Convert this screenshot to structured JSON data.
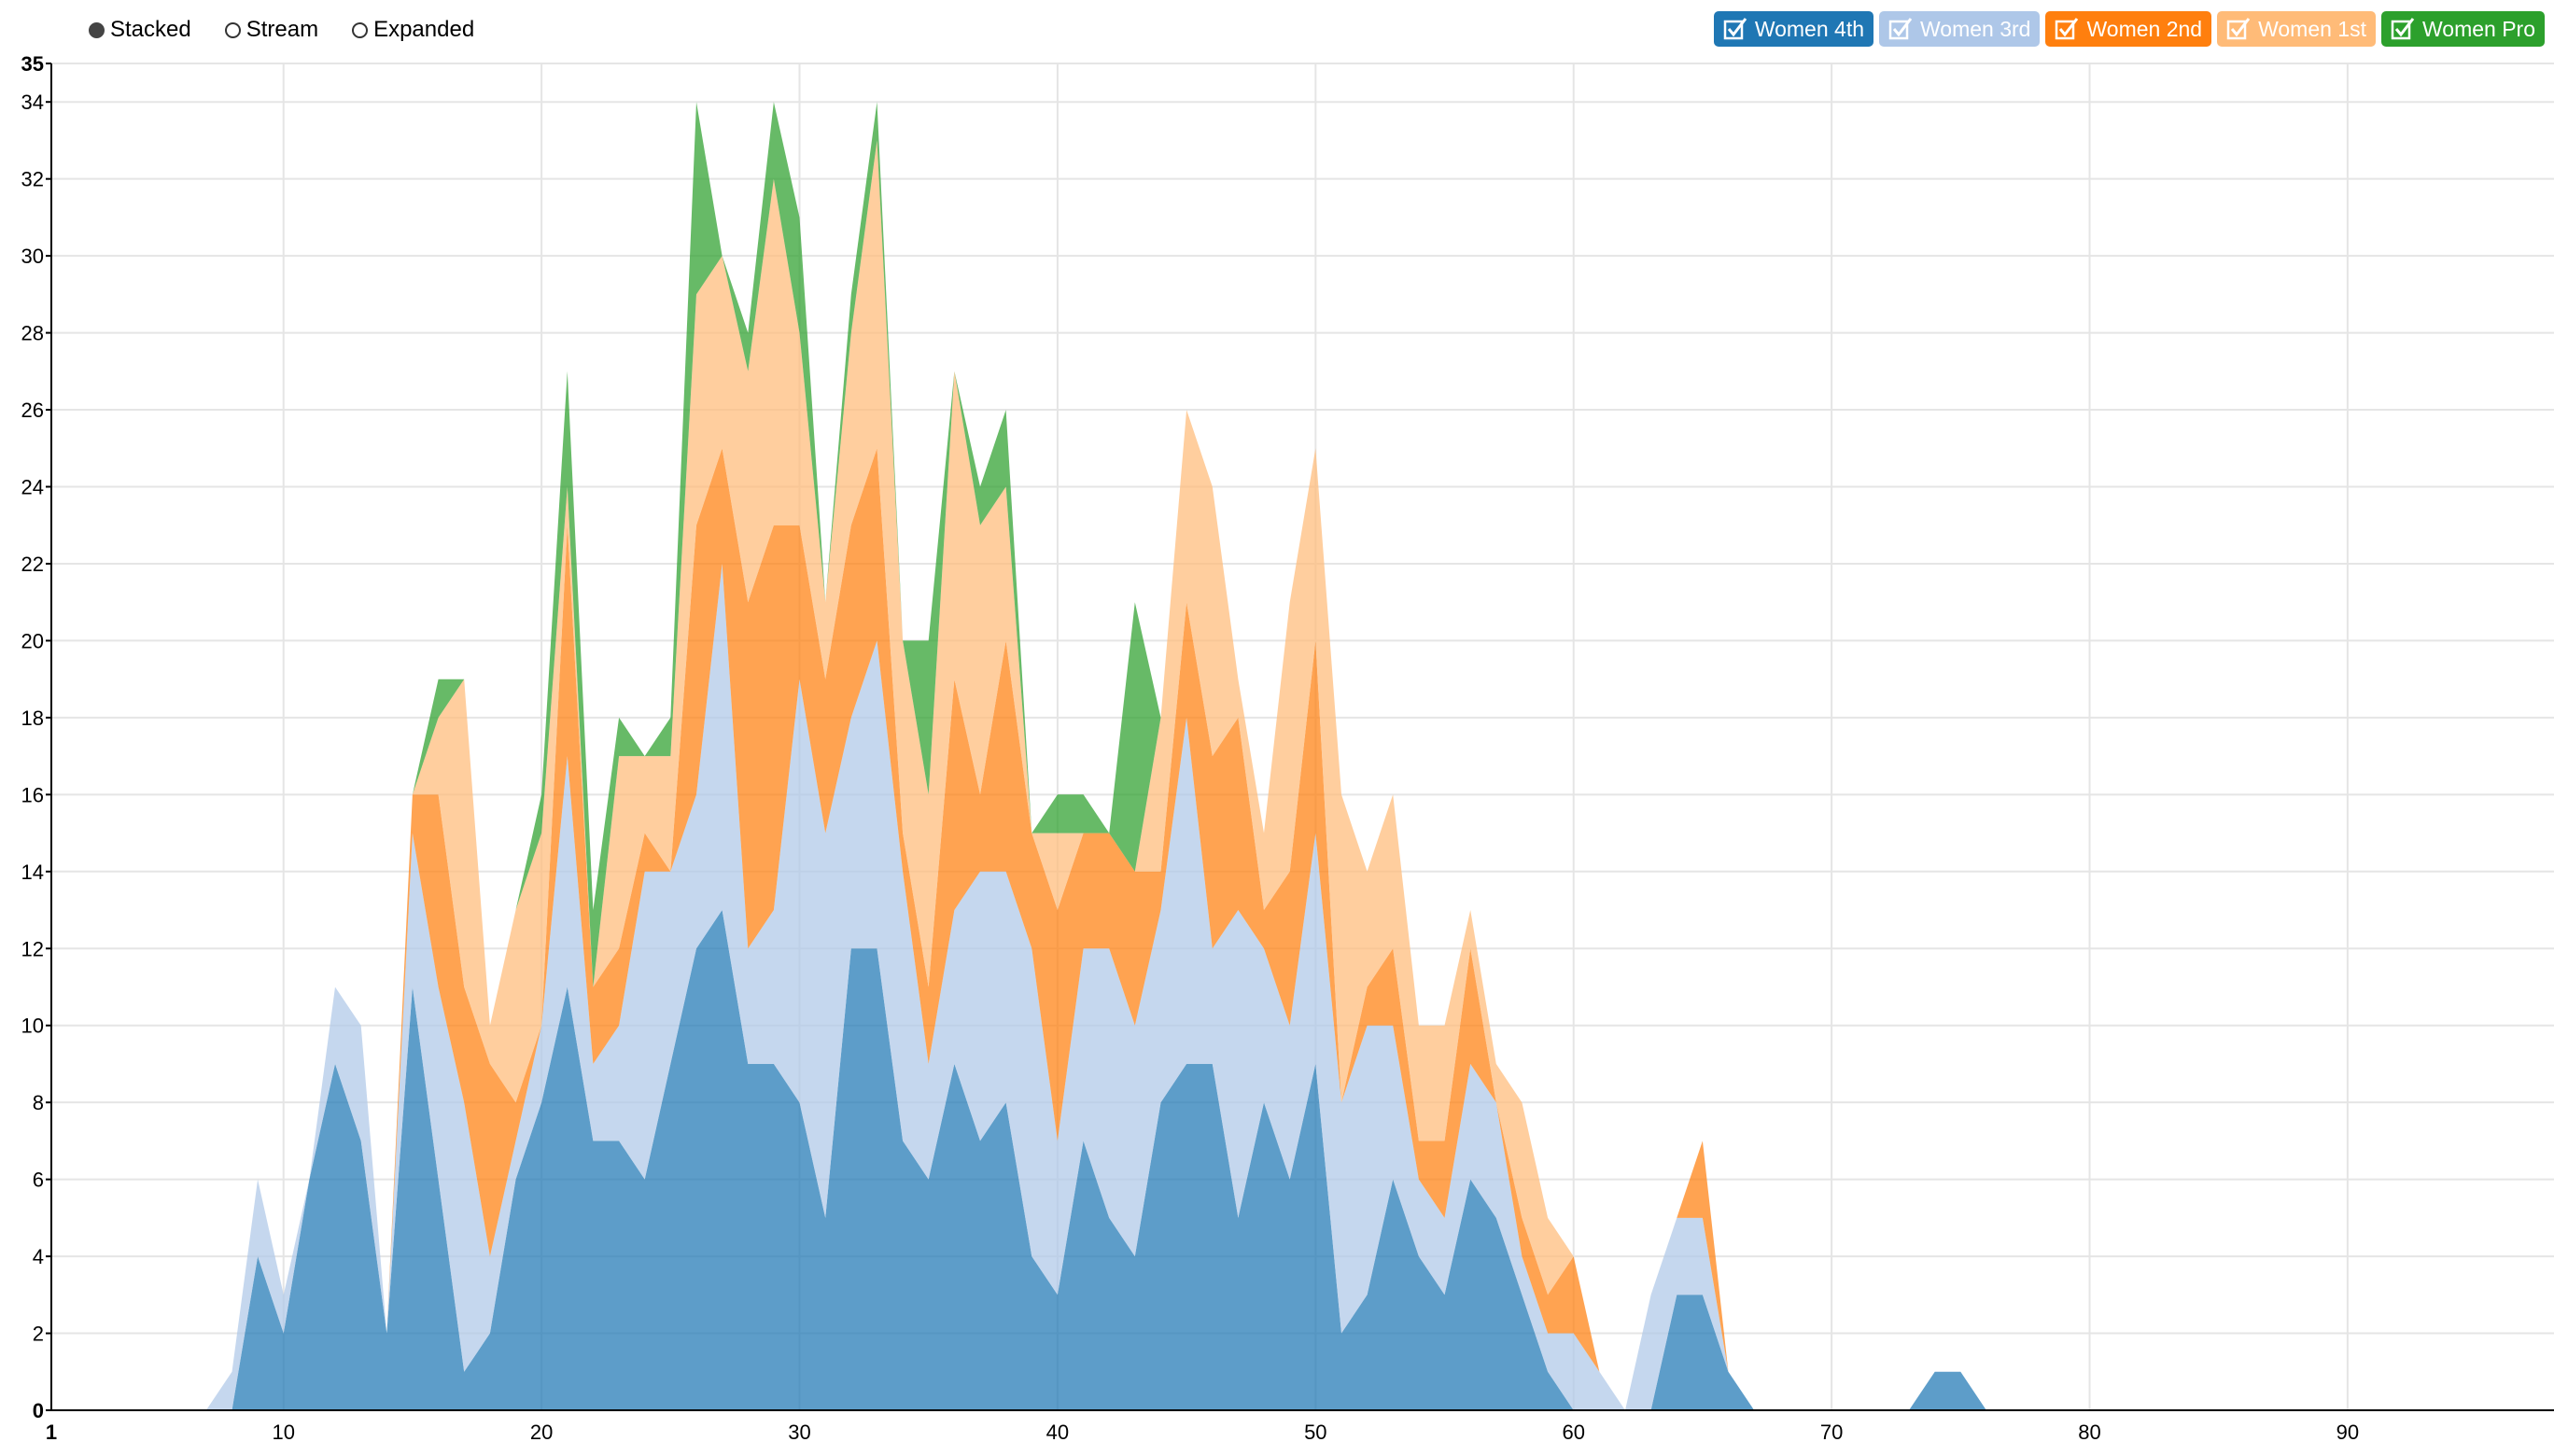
{
  "controls": [
    {
      "label": "Stacked",
      "selected": true
    },
    {
      "label": "Stream",
      "selected": false
    },
    {
      "label": "Expanded",
      "selected": false
    }
  ],
  "legend": [
    {
      "label": "Women 4th",
      "color": "#1f77b4",
      "checked": true
    },
    {
      "label": "Women 3rd",
      "color": "#aec7e8",
      "checked": true
    },
    {
      "label": "Women 2nd",
      "color": "#ff7f0e",
      "checked": true
    },
    {
      "label": "Women 1st",
      "color": "#ffbb78",
      "checked": true
    },
    {
      "label": "Women Pro",
      "color": "#2ca02c",
      "checked": true
    }
  ],
  "chart_data": {
    "type": "area",
    "stacked": true,
    "xlim": [
      1,
      98
    ],
    "ylim": [
      0,
      35
    ],
    "x_ticks": [
      1,
      10,
      20,
      30,
      40,
      50,
      60,
      70,
      80,
      90
    ],
    "y_ticks": [
      0,
      2,
      4,
      6,
      8,
      10,
      12,
      14,
      16,
      18,
      20,
      22,
      24,
      26,
      28,
      30,
      32,
      34,
      35
    ],
    "grid": true,
    "legend_position": "top-right",
    "x": [
      7,
      8,
      9,
      10,
      11,
      12,
      13,
      14,
      15,
      16,
      17,
      18,
      19,
      20,
      21,
      22,
      23,
      24,
      25,
      26,
      27,
      28,
      29,
      30,
      31,
      32,
      33,
      34,
      35,
      36,
      37,
      38,
      39,
      40,
      41,
      42,
      43,
      44,
      45,
      46,
      47,
      48,
      49,
      50,
      51,
      52,
      53,
      54,
      55,
      56,
      57,
      58,
      59,
      60,
      61,
      62,
      63,
      64,
      65,
      66,
      67,
      68,
      69,
      70,
      71,
      72,
      73,
      74,
      75,
      76
    ],
    "series": [
      {
        "name": "Women 4th",
        "color": "#1f77b4",
        "values": [
          0,
          0,
          4,
          2,
          6,
          9,
          7,
          2,
          11,
          6,
          1,
          2,
          6,
          8,
          11,
          7,
          7,
          6,
          9,
          12,
          13,
          9,
          9,
          8,
          5,
          12,
          12,
          7,
          6,
          9,
          7,
          8,
          4,
          3,
          7,
          5,
          4,
          8,
          9,
          9,
          5,
          8,
          6,
          9,
          2,
          3,
          6,
          4,
          3,
          6,
          5,
          3,
          1,
          0,
          0,
          0,
          0,
          3,
          3,
          1,
          0,
          0,
          0,
          0,
          0,
          0,
          0,
          1,
          1,
          0
        ]
      },
      {
        "name": "Women 3rd",
        "color": "#aec7e8",
        "values": [
          0,
          1,
          2,
          1,
          0,
          2,
          3,
          0,
          4,
          5,
          7,
          2,
          1,
          2,
          6,
          2,
          3,
          8,
          5,
          4,
          9,
          3,
          4,
          11,
          10,
          6,
          8,
          7,
          3,
          4,
          7,
          6,
          8,
          4,
          5,
          7,
          6,
          5,
          9,
          3,
          8,
          4,
          4,
          6,
          6,
          7,
          4,
          2,
          2,
          3,
          3,
          1,
          1,
          2,
          1,
          0,
          3,
          2,
          2,
          0,
          0,
          0,
          0,
          0,
          0,
          0,
          0,
          0,
          0,
          0
        ]
      },
      {
        "name": "Women 2nd",
        "color": "#ff7f0e",
        "values": [
          0,
          0,
          0,
          0,
          0,
          0,
          0,
          0,
          1,
          5,
          3,
          5,
          1,
          0,
          6,
          2,
          2,
          1,
          0,
          7,
          3,
          9,
          10,
          4,
          4,
          5,
          5,
          1,
          2,
          6,
          2,
          6,
          3,
          6,
          3,
          3,
          4,
          1,
          3,
          5,
          5,
          1,
          4,
          5,
          0,
          1,
          2,
          1,
          2,
          3,
          0,
          1,
          1,
          2,
          0,
          0,
          0,
          0,
          2,
          0,
          0,
          0,
          0,
          0,
          0,
          0,
          0,
          0,
          0,
          0
        ]
      },
      {
        "name": "Women 1st",
        "color": "#ffbb78",
        "values": [
          0,
          0,
          0,
          0,
          0,
          0,
          0,
          0,
          0,
          2,
          8,
          1,
          5,
          5,
          1,
          0,
          5,
          2,
          3,
          6,
          5,
          6,
          9,
          5,
          2,
          5,
          8,
          5,
          5,
          8,
          7,
          4,
          0,
          2,
          0,
          0,
          0,
          4,
          5,
          7,
          1,
          2,
          7,
          5,
          8,
          3,
          4,
          3,
          3,
          1,
          1,
          3,
          2,
          0,
          0,
          0,
          0,
          0,
          0,
          0,
          0,
          0,
          0,
          0,
          0,
          0,
          0,
          0,
          0,
          0
        ]
      },
      {
        "name": "Women Pro",
        "color": "#2ca02c",
        "values": [
          0,
          0,
          0,
          0,
          0,
          0,
          0,
          0,
          0,
          1,
          0,
          0,
          0,
          1,
          3,
          2,
          1,
          0,
          1,
          5,
          0,
          1,
          2,
          3,
          0,
          1,
          1,
          0,
          4,
          0,
          1,
          2,
          0,
          1,
          1,
          0,
          7,
          0,
          0,
          0,
          0,
          0,
          0,
          0,
          0,
          0,
          0,
          0,
          0,
          0,
          0,
          0,
          0,
          0,
          0,
          0,
          0,
          0,
          0,
          0,
          0,
          0,
          0,
          0,
          0,
          0,
          0,
          0,
          0,
          0
        ]
      }
    ]
  }
}
